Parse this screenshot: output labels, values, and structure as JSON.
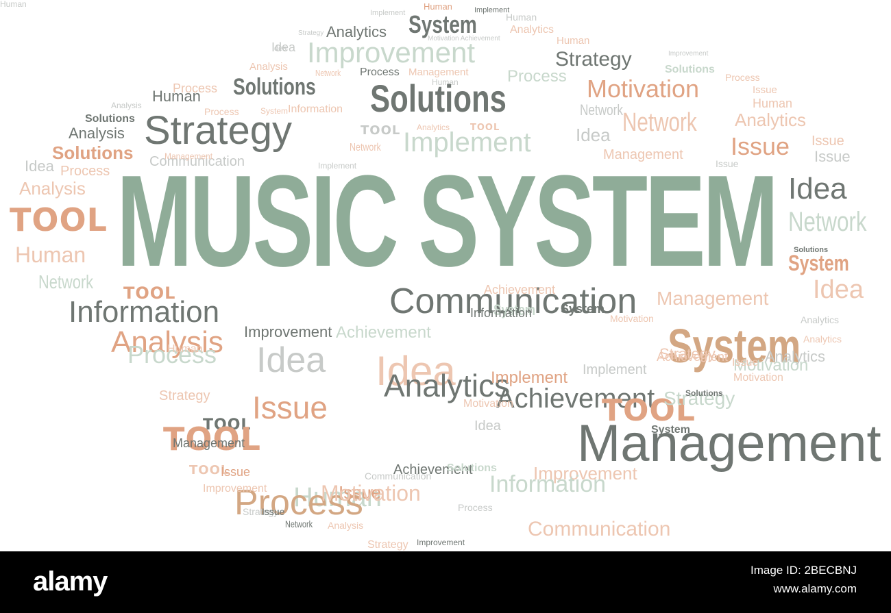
{
  "colors": {
    "green": "#8fac98",
    "gray": "#6f7672",
    "peach": "#e0a383",
    "lightpeach": "#edc6b1",
    "lightgreen": "#c8d8cc",
    "lightgray": "#c7cac8",
    "tan": "#d3a783"
  },
  "title": "MUSIC SYSTEM",
  "words": [
    {
      "text": "Implement",
      "c": "lightgray",
      "s": 11,
      "st": ""
    },
    {
      "text": "Human",
      "c": "peach",
      "s": 13,
      "st": ""
    },
    {
      "text": "Implement",
      "c": "gray",
      "s": 11,
      "st": ""
    },
    {
      "text": "Analytics",
      "c": "gray",
      "s": 22,
      "st": ""
    },
    {
      "text": "System",
      "c": "gray",
      "s": 36,
      "st": "bold narrow"
    },
    {
      "text": "Human",
      "c": "lightgray",
      "s": 14,
      "st": ""
    },
    {
      "text": "Analytics",
      "c": "lightpeach",
      "s": 16,
      "st": ""
    },
    {
      "text": "Strategy",
      "c": "lightgray",
      "s": 10,
      "st": ""
    },
    {
      "text": "Idea",
      "c": "lightgray",
      "s": 11,
      "st": ""
    },
    {
      "text": "Improvement",
      "c": "lightgreen",
      "s": 42,
      "st": ""
    },
    {
      "text": "Motivation Achievement",
      "c": "lightgray",
      "s": 10,
      "st": ""
    },
    {
      "text": "Human",
      "c": "lightpeach",
      "s": 15,
      "st": ""
    },
    {
      "text": "Strategy",
      "c": "gray",
      "s": 30,
      "st": ""
    },
    {
      "text": "Improvement",
      "c": "lightgray",
      "s": 10,
      "st": ""
    },
    {
      "text": "Idea",
      "c": "lightgray",
      "s": 18,
      "st": "light"
    },
    {
      "text": "Analysis",
      "c": "lightpeach",
      "s": 15,
      "st": ""
    },
    {
      "text": "Network",
      "c": "lightpeach",
      "s": 13,
      "st": "narrow"
    },
    {
      "text": "Process",
      "c": "gray",
      "s": 16,
      "st": ""
    },
    {
      "text": "Management",
      "c": "lightpeach",
      "s": 15,
      "st": ""
    },
    {
      "text": "Process",
      "c": "lightgreen",
      "s": 24,
      "st": ""
    },
    {
      "text": "Solutions",
      "c": "lightgreen",
      "s": 16,
      "st": "bold"
    },
    {
      "text": "Process",
      "c": "lightpeach",
      "s": 14,
      "st": ""
    },
    {
      "text": "Process",
      "c": "lightpeach",
      "s": 18,
      "st": ""
    },
    {
      "text": "Solutions",
      "c": "gray",
      "s": 34,
      "st": "bold narrow"
    },
    {
      "text": "Human",
      "c": "lightgray",
      "s": 12,
      "st": ""
    },
    {
      "text": "Motivation",
      "c": "peach",
      "s": 36,
      "st": ""
    },
    {
      "text": "Issue",
      "c": "lightpeach",
      "s": 15,
      "st": ""
    },
    {
      "text": "Human",
      "c": "gray",
      "s": 22,
      "st": ""
    },
    {
      "text": "Solutions",
      "c": "gray",
      "s": 56,
      "st": "bold narrow"
    },
    {
      "text": "Human",
      "c": "lightpeach",
      "s": 18,
      "st": ""
    },
    {
      "text": "Analysis",
      "c": "lightgray",
      "s": 12,
      "st": ""
    },
    {
      "text": "Process",
      "c": "lightpeach",
      "s": 14,
      "st": ""
    },
    {
      "text": "System",
      "c": "lightpeach",
      "s": 12,
      "st": ""
    },
    {
      "text": "Information",
      "c": "lightpeach",
      "s": 16,
      "st": ""
    },
    {
      "text": "Network",
      "c": "lightgray",
      "s": 22,
      "st": "narrow"
    },
    {
      "text": "Solutions",
      "c": "gray",
      "s": 16,
      "st": "bold"
    },
    {
      "text": "Strategy",
      "c": "gray",
      "s": 58,
      "st": ""
    },
    {
      "text": "Analysis",
      "c": "gray",
      "s": 22,
      "st": ""
    },
    {
      "text": "Network",
      "c": "lightpeach",
      "s": 38,
      "st": "narrow"
    },
    {
      "text": "Analytics",
      "c": "lightpeach",
      "s": 26,
      "st": ""
    },
    {
      "text": "TOOL",
      "c": "lightgray",
      "s": 18,
      "st": "tool"
    },
    {
      "text": "Analytics",
      "c": "lightpeach",
      "s": 12,
      "st": ""
    },
    {
      "text": "TOOL",
      "c": "lightpeach",
      "s": 13,
      "st": "tool"
    },
    {
      "text": "Implement",
      "c": "lightgreen",
      "s": 40,
      "st": ""
    },
    {
      "text": "Idea",
      "c": "lightgray",
      "s": 26,
      "st": "light"
    },
    {
      "text": "Issue",
      "c": "peach",
      "s": 36,
      "st": ""
    },
    {
      "text": "Issue",
      "c": "lightpeach",
      "s": 20,
      "st": ""
    },
    {
      "text": "Solutions",
      "c": "peach",
      "s": 26,
      "st": "bold"
    },
    {
      "text": "Network",
      "c": "lightpeach",
      "s": 16,
      "st": "narrow"
    },
    {
      "text": "Management",
      "c": "lightpeach",
      "s": 20,
      "st": ""
    },
    {
      "text": "Issue",
      "c": "lightgray",
      "s": 22,
      "st": ""
    },
    {
      "text": "Idea",
      "c": "lightgray",
      "s": 22,
      "st": "light"
    },
    {
      "text": "Issue",
      "c": "lightgray",
      "s": 14,
      "st": ""
    },
    {
      "text": "Communication",
      "c": "lightgray",
      "s": 20,
      "st": ""
    },
    {
      "text": "Management",
      "c": "lightpeach",
      "s": 12,
      "st": ""
    },
    {
      "text": "Process",
      "c": "lightpeach",
      "s": 20,
      "st": ""
    },
    {
      "text": "Implement",
      "c": "lightgray",
      "s": 12,
      "st": ""
    },
    {
      "text": "Analysis",
      "c": "lightpeach",
      "s": 26,
      "st": ""
    },
    {
      "text": "Idea",
      "c": "gray",
      "s": 44,
      "st": "light"
    },
    {
      "text": "TOOL",
      "c": "peach",
      "s": 46,
      "st": "tool"
    },
    {
      "text": "Network",
      "c": "lightgreen",
      "s": 40,
      "st": "narrow"
    },
    {
      "text": "Human",
      "c": "lightpeach",
      "s": 32,
      "st": ""
    },
    {
      "text": "System",
      "c": "peach",
      "s": 32,
      "st": "bold narrow"
    },
    {
      "text": "Network",
      "c": "lightgreen",
      "s": 28,
      "st": "narrow"
    },
    {
      "text": "Solutions",
      "c": "gray",
      "s": 11,
      "st": "bold"
    },
    {
      "text": "TOOL",
      "c": "peach",
      "s": 24,
      "st": "tool"
    },
    {
      "text": "Communication",
      "c": "gray",
      "s": 52,
      "st": ""
    },
    {
      "text": "Achievement",
      "c": "lightpeach",
      "s": 18,
      "st": ""
    },
    {
      "text": "Management",
      "c": "lightpeach",
      "s": 28,
      "st": ""
    },
    {
      "text": "Information",
      "c": "gray",
      "s": 44,
      "st": ""
    },
    {
      "text": "Idea",
      "c": "lightpeach",
      "s": 38,
      "st": "light"
    },
    {
      "text": "System",
      "c": "lightgreen",
      "s": 22,
      "st": "bold narrow"
    },
    {
      "text": "System",
      "c": "gray",
      "s": 18,
      "st": "bold"
    },
    {
      "text": "Improvement",
      "c": "gray",
      "s": 22,
      "st": ""
    },
    {
      "text": "Information",
      "c": "gray",
      "s": 18,
      "st": ""
    },
    {
      "text": "System",
      "c": "tan",
      "s": 70,
      "st": "bold narrow"
    },
    {
      "text": "Analysis",
      "c": "peach",
      "s": 44,
      "st": ""
    },
    {
      "text": "Achievement",
      "c": "lightgreen",
      "s": 24,
      "st": ""
    },
    {
      "text": "Process",
      "c": "lightgreen",
      "s": 36,
      "st": ""
    },
    {
      "text": "Human",
      "c": "lightpeach",
      "s": 16,
      "st": ""
    },
    {
      "text": "Idea",
      "c": "lightgray",
      "s": 52,
      "st": "light"
    },
    {
      "text": "Idea",
      "c": "lightpeach",
      "s": 60,
      "st": "light"
    },
    {
      "text": "Implement",
      "c": "lightgray",
      "s": 20,
      "st": ""
    },
    {
      "text": "Analytics",
      "c": "gray",
      "s": 46,
      "st": ""
    },
    {
      "text": "Implement",
      "c": "peach",
      "s": 24,
      "st": ""
    },
    {
      "text": "Motivation",
      "c": "lightgreen",
      "s": 24,
      "st": ""
    },
    {
      "text": "Strategy",
      "c": "lightpeach",
      "s": 20,
      "st": ""
    },
    {
      "text": "Issue",
      "c": "peach",
      "s": 46,
      "st": ""
    },
    {
      "text": "Achievement",
      "c": "gray",
      "s": 40,
      "st": ""
    },
    {
      "text": "TOOL",
      "c": "peach",
      "s": 44,
      "st": "tool"
    },
    {
      "text": "Strategy",
      "c": "lightgreen",
      "s": 28,
      "st": ""
    },
    {
      "text": "Motivation",
      "c": "lightpeach",
      "s": 16,
      "st": ""
    },
    {
      "text": "TOOL",
      "c": "gray",
      "s": 22,
      "st": "tool"
    },
    {
      "text": "Management",
      "c": "gray",
      "s": 76,
      "st": ""
    },
    {
      "text": "TOOL",
      "c": "peach",
      "s": 46,
      "st": "tool"
    },
    {
      "text": "System",
      "c": "gray",
      "s": 16,
      "st": "bold"
    },
    {
      "text": "Idea",
      "c": "lightgray",
      "s": 20,
      "st": "light"
    },
    {
      "text": "Management",
      "c": "gray",
      "s": 18,
      "st": ""
    },
    {
      "text": "TOOL",
      "c": "lightpeach",
      "s": 18,
      "st": "tool"
    },
    {
      "text": "Issue",
      "c": "peach",
      "s": 18,
      "st": ""
    },
    {
      "text": "Improvement",
      "c": "lightpeach",
      "s": 26,
      "st": ""
    },
    {
      "text": "Achievement",
      "c": "gray",
      "s": 20,
      "st": ""
    },
    {
      "text": "Solutions",
      "c": "lightgreen",
      "s": 16,
      "st": "bold"
    },
    {
      "text": "Communication",
      "c": "lightgray",
      "s": 14,
      "st": ""
    },
    {
      "text": "Information",
      "c": "lightgreen",
      "s": 34,
      "st": ""
    },
    {
      "text": "Human",
      "c": "lightgreen",
      "s": 40,
      "st": ""
    },
    {
      "text": "Process",
      "c": "tan",
      "s": 52,
      "st": ""
    },
    {
      "text": "Issue",
      "c": "peach",
      "s": 26,
      "st": ""
    },
    {
      "text": "Process",
      "c": "lightgray",
      "s": 14,
      "st": ""
    },
    {
      "text": "Motivation",
      "c": "lightpeach",
      "s": 32,
      "st": ""
    },
    {
      "text": "Strategy",
      "c": "lightgray",
      "s": 14,
      "st": ""
    },
    {
      "text": "Issue",
      "c": "gray",
      "s": 14,
      "st": ""
    },
    {
      "text": "Network",
      "c": "gray",
      "s": 14,
      "st": "narrow"
    },
    {
      "text": "Analysis",
      "c": "lightpeach",
      "s": 14,
      "st": ""
    },
    {
      "text": "Communication",
      "c": "lightpeach",
      "s": 30,
      "st": ""
    },
    {
      "text": "Strategy",
      "c": "lightpeach",
      "s": 16,
      "st": ""
    },
    {
      "text": "Improvement",
      "c": "gray",
      "s": 12,
      "st": ""
    },
    {
      "text": "Motivation",
      "c": "lightpeach",
      "s": 14,
      "st": ""
    },
    {
      "text": "Analytics",
      "c": "lightgray",
      "s": 14,
      "st": ""
    },
    {
      "text": "Analytics",
      "c": "lightgray",
      "s": 22,
      "st": ""
    },
    {
      "text": "Solutions",
      "c": "gray",
      "s": 12,
      "st": "bold"
    },
    {
      "text": "Motivation",
      "c": "lightpeach",
      "s": 16,
      "st": ""
    },
    {
      "text": "Analytics",
      "c": "lightpeach",
      "s": 14,
      "st": ""
    },
    {
      "text": "Issue",
      "c": "lightpeach",
      "s": 16,
      "st": ""
    },
    {
      "text": "Strategy",
      "c": "lightpeach",
      "s": 22,
      "st": ""
    },
    {
      "text": "Achievement",
      "c": "lightpeach",
      "s": 18,
      "st": ""
    },
    {
      "text": "Improvement",
      "c": "lightpeach",
      "s": 16,
      "st": ""
    },
    {
      "text": "Human",
      "c": "lightgray",
      "s": 12,
      "st": ""
    }
  ],
  "footer": {
    "brand": "alamy",
    "ref_label": "Image ID: 2BECBNJ",
    "site": "www.alamy.com"
  }
}
